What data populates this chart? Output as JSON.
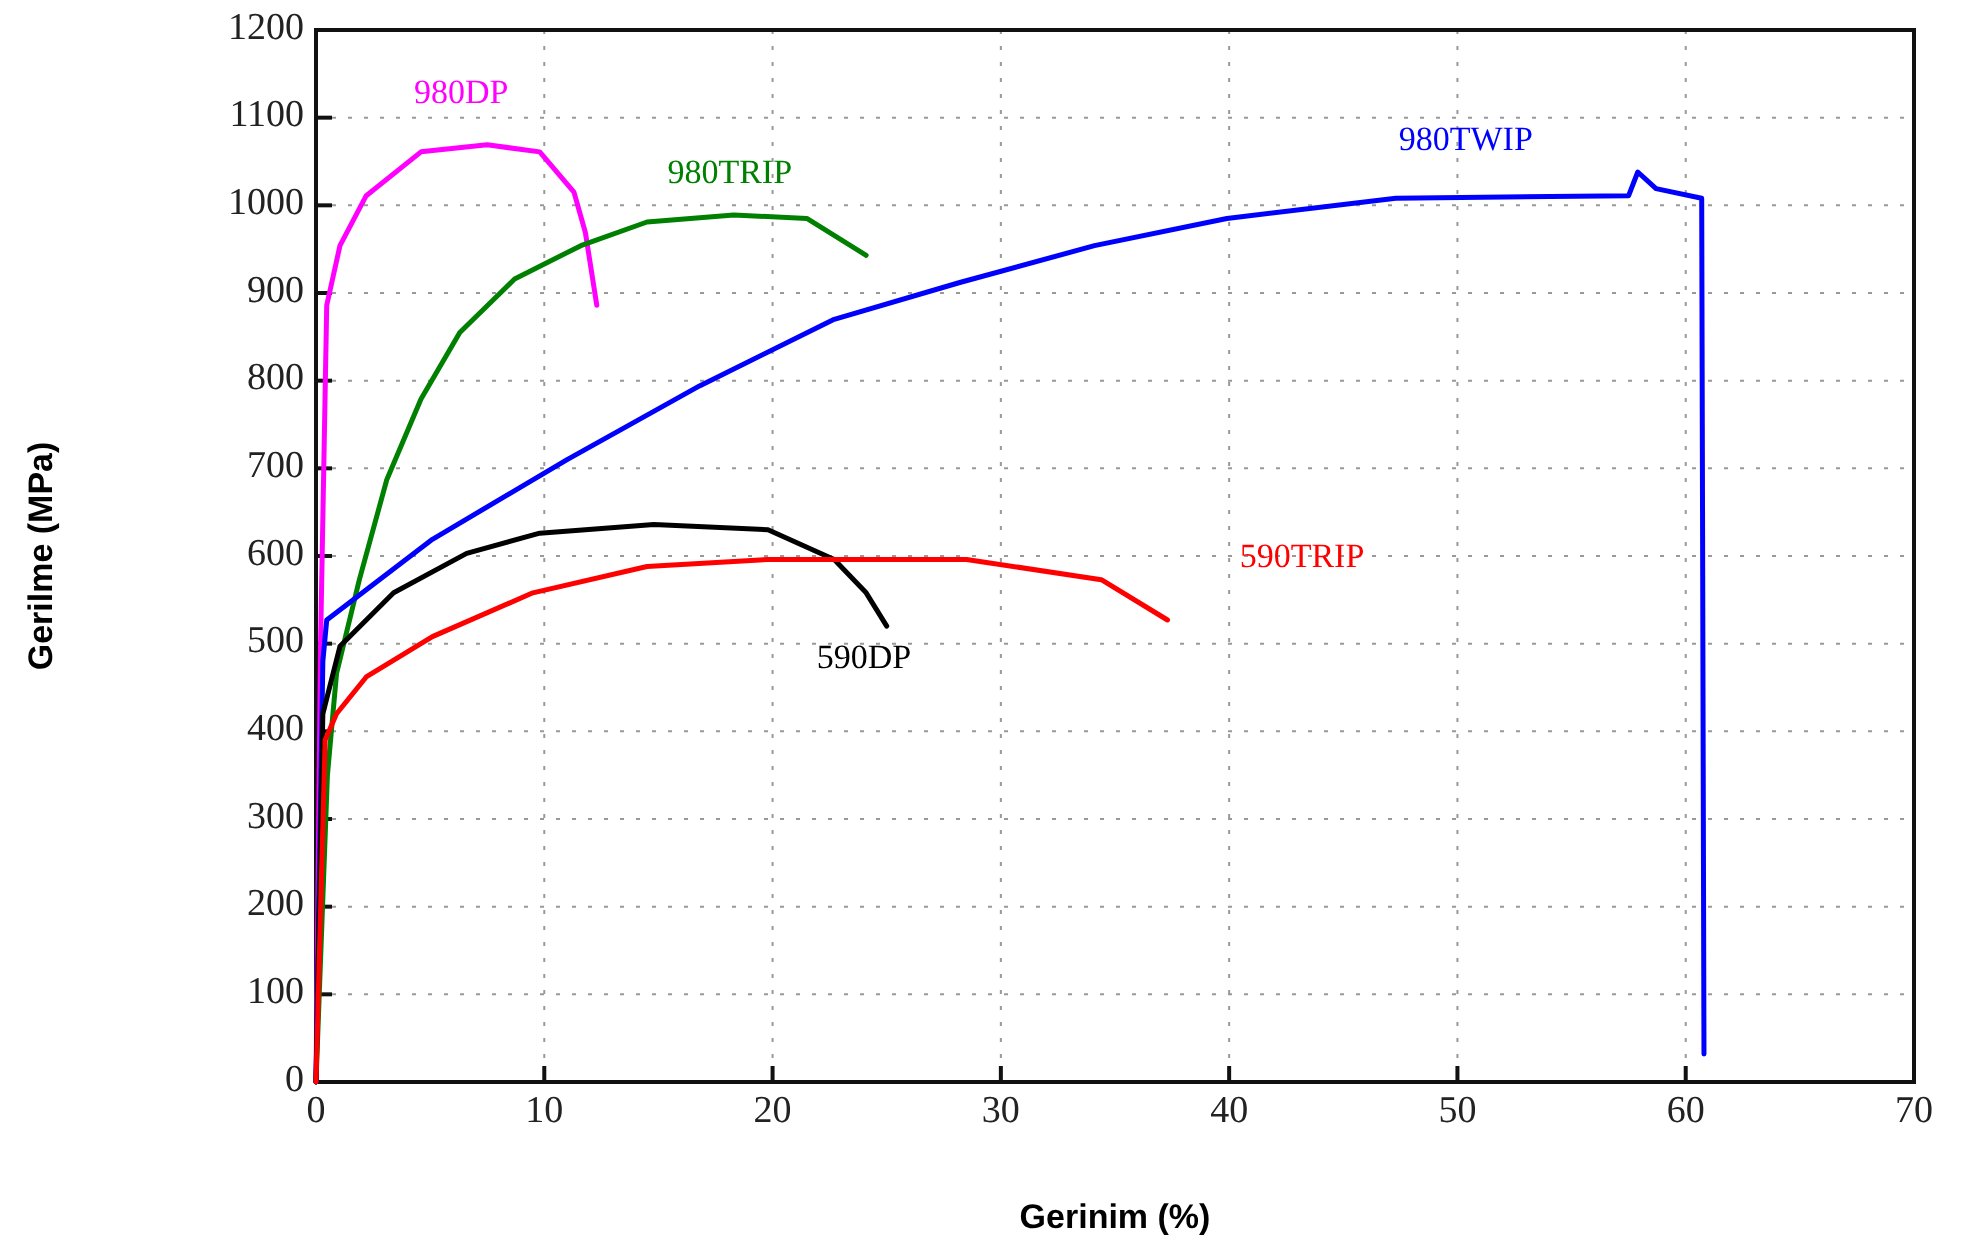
{
  "chart_data": {
    "type": "line",
    "xlabel": "Gerinim (%)",
    "ylabel": "Gerilme (MPa)",
    "xlim": [
      0,
      70
    ],
    "ylim": [
      0,
      1200
    ],
    "xticks": [
      0,
      10,
      20,
      30,
      40,
      50,
      60,
      70
    ],
    "yticks": [
      0,
      100,
      200,
      300,
      400,
      500,
      600,
      700,
      800,
      900,
      1000,
      1100,
      1200
    ],
    "grid": true,
    "marker": "none",
    "line_style": "solid",
    "series": [
      {
        "name": "980DP",
        "color": "#ff00ff",
        "x": [
          0,
          0.2,
          0.47,
          1.05,
          2.2,
          4.6,
          7.5,
          9.8,
          11.3,
          11.8,
          12.3
        ],
        "values": [
          0,
          500,
          886,
          954,
          1011,
          1061,
          1069,
          1061,
          1015,
          969,
          886
        ]
      },
      {
        "name": "980TRIP",
        "color": "#008000",
        "x": [
          0,
          0.5,
          0.9,
          1.9,
          3.1,
          4.6,
          6.3,
          8.7,
          11.6,
          14.5,
          18.3,
          21.5,
          24.1
        ],
        "values": [
          0,
          350,
          466,
          573,
          687,
          779,
          855,
          916,
          954,
          981,
          989,
          985,
          943
        ]
      },
      {
        "name": "980TWIP",
        "color": "#0000ff",
        "x": [
          0,
          0.3,
          0.47,
          5.1,
          11,
          16.8,
          22.7,
          28.2,
          34.1,
          39.9,
          47.3,
          57.5,
          57.9,
          58.7,
          60.7,
          60.8
        ],
        "values": [
          0,
          480,
          527,
          619,
          710,
          794,
          870,
          912,
          954,
          985,
          1008,
          1011,
          1038,
          1019,
          1008,
          32
        ]
      },
      {
        "name": "590DP",
        "color": "#000000",
        "x": [
          0,
          0.3,
          1.05,
          3.4,
          6.6,
          9.8,
          14.8,
          19.8,
          22.7,
          24.1,
          25
        ],
        "values": [
          0,
          420,
          497,
          558,
          603,
          626,
          636,
          630,
          596,
          558,
          520
        ]
      },
      {
        "name": "590TRIP",
        "color": "#ff0000",
        "x": [
          0,
          0.4,
          0.9,
          2.2,
          5.1,
          9.5,
          14.5,
          19.8,
          28.5,
          34.4,
          37.3
        ],
        "values": [
          0,
          390,
          420,
          462,
          508,
          558,
          588,
          596,
          596,
          573,
          527
        ]
      }
    ]
  }
}
